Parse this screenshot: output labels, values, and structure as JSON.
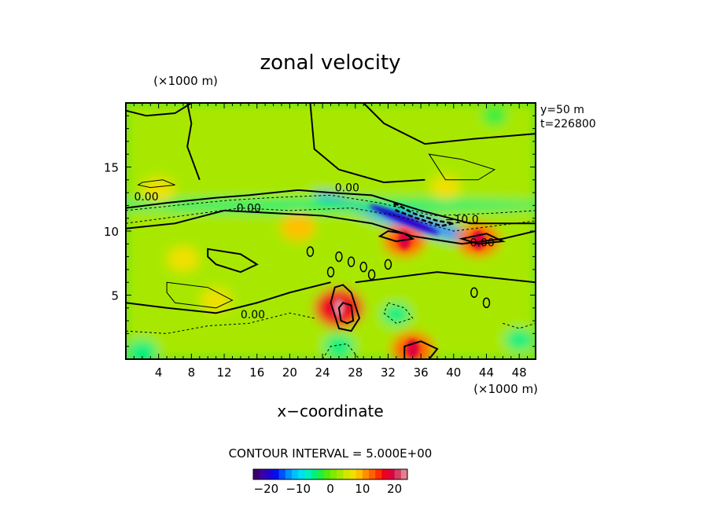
{
  "chart_data": {
    "type": "heatmap",
    "title": "zonal velocity",
    "y_unit_label": "(×1000 m)",
    "x_unit_label": "(×1000 m)",
    "xlabel": "x−coordinate",
    "ylabel": "",
    "xlim": [
      0,
      50
    ],
    "ylim": [
      0,
      20
    ],
    "x_ticks": [
      4,
      8,
      12,
      16,
      20,
      24,
      28,
      32,
      36,
      40,
      44,
      48
    ],
    "x_tick_labels": [
      "4",
      "8",
      "12",
      "16",
      "20",
      "24",
      "28",
      "32",
      "36",
      "40",
      "44",
      "48"
    ],
    "y_ticks": [
      5,
      10,
      15
    ],
    "y_tick_labels": [
      "5",
      "10",
      "15"
    ],
    "info_lines": [
      "y=50  m",
      "t=226800"
    ],
    "contour_interval_text": "CONTOUR INTERVAL = 5.000E+00",
    "contour_labels": [
      {
        "text": "0.00",
        "x": 2.5,
        "y": 12.4
      },
      {
        "text": "0.00",
        "x": 15.0,
        "y": 11.5
      },
      {
        "text": "0.00",
        "x": 27.0,
        "y": 13.1
      },
      {
        "text": "−10.0",
        "x": 41.0,
        "y": 10.6
      },
      {
        "text": "0.00",
        "x": 43.5,
        "y": 8.8
      },
      {
        "text": "0.00",
        "x": 15.5,
        "y": 3.2
      }
    ],
    "colorbar": {
      "min": -24,
      "max": 24,
      "ticks": [
        -20,
        -10,
        0,
        10,
        20
      ],
      "tick_labels": [
        "−20",
        "−10",
        "0",
        "10",
        "20"
      ],
      "colors": [
        "#3a006e",
        "#3a00a8",
        "#2200d0",
        "#0010f0",
        "#0050ff",
        "#0090ff",
        "#00c0ff",
        "#00e0f0",
        "#00f0c0",
        "#00f080",
        "#20ee40",
        "#50ec10",
        "#80ea00",
        "#a8e800",
        "#d0e800",
        "#f0e000",
        "#ffc000",
        "#ff9000",
        "#ff6000",
        "#ff3000",
        "#f00020",
        "#e00040",
        "#d04060",
        "#e08090"
      ]
    },
    "background_value": 2,
    "features": [
      {
        "kind": "jet",
        "x": 34,
        "y": 10.9,
        "value": -14
      },
      {
        "kind": "band",
        "x": 25,
        "y": 12.0,
        "value": -6
      },
      {
        "kind": "blob",
        "x": 26,
        "y": 4.0,
        "value": 16
      },
      {
        "kind": "blob",
        "x": 34,
        "y": 9.3,
        "value": 12
      },
      {
        "kind": "blob",
        "x": 43,
        "y": 9.3,
        "value": 12
      },
      {
        "kind": "blob",
        "x": 35,
        "y": 0.8,
        "value": 12
      },
      {
        "kind": "blob",
        "x": 21,
        "y": 10.3,
        "value": 8
      },
      {
        "kind": "blob",
        "x": 4,
        "y": 13.2,
        "value": 7
      },
      {
        "kind": "blob",
        "x": 39,
        "y": 13.4,
        "value": 6
      },
      {
        "kind": "blob",
        "x": 7,
        "y": 7.8,
        "value": 7
      },
      {
        "kind": "blob",
        "x": 11,
        "y": 4.6,
        "value": 6
      },
      {
        "kind": "blob",
        "x": 33,
        "y": 3.5,
        "value": -5
      },
      {
        "kind": "blob",
        "x": 26,
        "y": 1.0,
        "value": -6
      },
      {
        "kind": "blob",
        "x": 2,
        "y": 0.6,
        "value": -6
      },
      {
        "kind": "blob",
        "x": 48,
        "y": 1.5,
        "value": -5
      },
      {
        "kind": "blob",
        "x": 45,
        "y": 19.0,
        "value": -3
      }
    ]
  }
}
